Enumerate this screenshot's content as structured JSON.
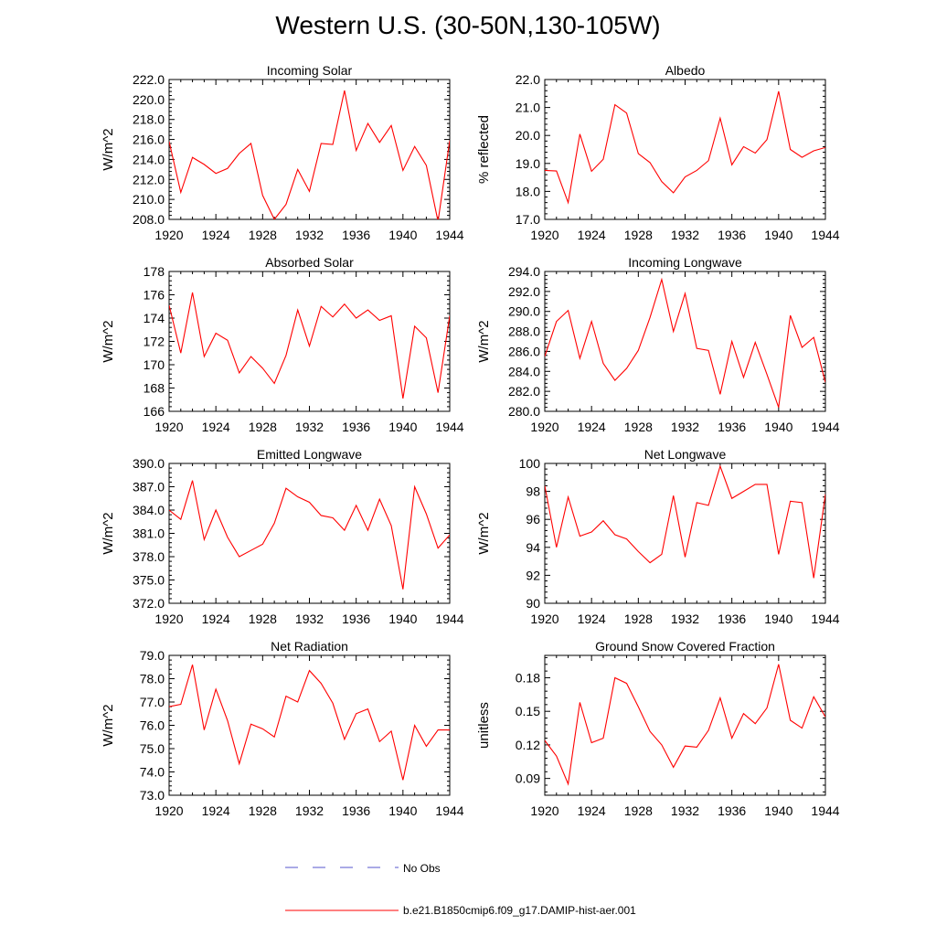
{
  "page": {
    "title": "Western U.S. (30-50N,130-105W)"
  },
  "legend": [
    {
      "label": "No Obs",
      "color": "#5555cc",
      "dash": "dashed"
    },
    {
      "label": "b.e21.B1850cmip6.f09_g17.DAMIP-hist-aer.001",
      "color": "#ff0000",
      "dash": "solid"
    }
  ],
  "colors": {
    "series": "#ff0000",
    "axis": "#000000"
  },
  "chart_data": [
    {
      "type": "line",
      "title": "Incoming Solar",
      "ylabel": "W/m^2",
      "xlim": [
        1920,
        1944
      ],
      "ylim": [
        208,
        222
      ],
      "xticks": [
        1920,
        1924,
        1928,
        1932,
        1936,
        1940,
        1944
      ],
      "yticks": [
        "208.0",
        "210.0",
        "212.0",
        "214.0",
        "216.0",
        "218.0",
        "220.0",
        "222.0"
      ],
      "x": [
        1920,
        1921,
        1922,
        1923,
        1924,
        1925,
        1926,
        1927,
        1928,
        1929,
        1930,
        1931,
        1932,
        1933,
        1934,
        1935,
        1936,
        1937,
        1938,
        1939,
        1940,
        1941,
        1942,
        1943,
        1944
      ],
      "series": [
        {
          "values": [
            215.8,
            210.7,
            214.2,
            213.5,
            212.6,
            213.1,
            214.6,
            215.6,
            210.4,
            208.0,
            209.5,
            213.0,
            210.8,
            215.6,
            215.5,
            220.9,
            214.9,
            217.6,
            215.7,
            217.4,
            212.9,
            215.3,
            213.4,
            207.8,
            215.9
          ]
        }
      ]
    },
    {
      "type": "line",
      "title": "Albedo",
      "ylabel": "% reflected",
      "xlim": [
        1920,
        1944
      ],
      "ylim": [
        17,
        22
      ],
      "xticks": [
        1920,
        1924,
        1928,
        1932,
        1936,
        1940,
        1944
      ],
      "yticks": [
        "17.0",
        "18.0",
        "19.0",
        "20.0",
        "21.0",
        "22.0"
      ],
      "x": [
        1920,
        1921,
        1922,
        1923,
        1924,
        1925,
        1926,
        1927,
        1928,
        1929,
        1930,
        1931,
        1932,
        1933,
        1934,
        1935,
        1936,
        1937,
        1938,
        1939,
        1940,
        1941,
        1942,
        1943,
        1944
      ],
      "series": [
        {
          "values": [
            18.75,
            18.73,
            17.6,
            20.05,
            18.72,
            19.15,
            21.1,
            20.8,
            19.35,
            19.03,
            18.35,
            17.95,
            18.52,
            18.75,
            19.1,
            20.62,
            18.95,
            19.6,
            19.37,
            19.85,
            21.58,
            19.5,
            19.22,
            19.45,
            19.57
          ]
        }
      ]
    },
    {
      "type": "line",
      "title": "Absorbed Solar",
      "ylabel": "W/m^2",
      "xlim": [
        1920,
        1944
      ],
      "ylim": [
        166,
        178
      ],
      "xticks": [
        1920,
        1924,
        1928,
        1932,
        1936,
        1940,
        1944
      ],
      "yticks": [
        "166",
        "168",
        "170",
        "172",
        "174",
        "176",
        "178"
      ],
      "x": [
        1920,
        1921,
        1922,
        1923,
        1924,
        1925,
        1926,
        1927,
        1928,
        1929,
        1930,
        1931,
        1932,
        1933,
        1934,
        1935,
        1936,
        1937,
        1938,
        1939,
        1940,
        1941,
        1942,
        1943,
        1944
      ],
      "series": [
        {
          "values": [
            175.1,
            171.0,
            176.2,
            170.7,
            172.7,
            172.1,
            169.3,
            170.7,
            169.7,
            168.4,
            170.8,
            174.7,
            171.6,
            175.0,
            174.1,
            175.2,
            174.0,
            174.7,
            173.8,
            174.2,
            167.1,
            173.3,
            172.3,
            167.6,
            174.2
          ]
        }
      ]
    },
    {
      "type": "line",
      "title": "Incoming Longwave",
      "ylabel": "W/m^2",
      "xlim": [
        1920,
        1944
      ],
      "ylim": [
        280,
        294
      ],
      "xticks": [
        1920,
        1924,
        1928,
        1932,
        1936,
        1940,
        1944
      ],
      "yticks": [
        "280.0",
        "282.0",
        "284.0",
        "286.0",
        "288.0",
        "290.0",
        "292.0",
        "294.0"
      ],
      "x": [
        1920,
        1921,
        1922,
        1923,
        1924,
        1925,
        1926,
        1927,
        1928,
        1929,
        1930,
        1931,
        1932,
        1933,
        1934,
        1935,
        1936,
        1937,
        1938,
        1939,
        1940,
        1941,
        1942,
        1943,
        1944
      ],
      "series": [
        {
          "values": [
            285.5,
            289.0,
            290.1,
            285.3,
            289.0,
            284.8,
            283.1,
            284.3,
            286.1,
            289.4,
            293.2,
            288.0,
            291.8,
            286.3,
            286.1,
            281.7,
            287.0,
            283.4,
            286.9,
            283.7,
            280.4,
            289.6,
            286.4,
            287.4,
            282.9
          ]
        }
      ]
    },
    {
      "type": "line",
      "title": "Emitted Longwave",
      "ylabel": "W/m^2",
      "xlim": [
        1920,
        1944
      ],
      "ylim": [
        372,
        390
      ],
      "xticks": [
        1920,
        1924,
        1928,
        1932,
        1936,
        1940,
        1944
      ],
      "yticks": [
        "372.0",
        "375.0",
        "378.0",
        "381.0",
        "384.0",
        "387.0",
        "390.0"
      ],
      "x": [
        1920,
        1921,
        1922,
        1923,
        1924,
        1925,
        1926,
        1927,
        1928,
        1929,
        1930,
        1931,
        1932,
        1933,
        1934,
        1935,
        1936,
        1937,
        1938,
        1939,
        1940,
        1941,
        1942,
        1943,
        1944
      ],
      "series": [
        {
          "values": [
            384.0,
            382.8,
            387.8,
            380.2,
            384.0,
            380.5,
            378.0,
            378.8,
            379.6,
            382.3,
            386.8,
            385.7,
            385.0,
            383.3,
            383.0,
            381.4,
            384.6,
            381.4,
            385.4,
            382.0,
            373.8,
            387.0,
            383.5,
            379.1,
            380.8
          ]
        }
      ]
    },
    {
      "type": "line",
      "title": "Net Longwave",
      "ylabel": "W/m^2",
      "xlim": [
        1920,
        1944
      ],
      "ylim": [
        90,
        100
      ],
      "xticks": [
        1920,
        1924,
        1928,
        1932,
        1936,
        1940,
        1944
      ],
      "yticks": [
        "90",
        "92",
        "94",
        "96",
        "98",
        "100"
      ],
      "x": [
        1920,
        1921,
        1922,
        1923,
        1924,
        1925,
        1926,
        1927,
        1928,
        1929,
        1930,
        1931,
        1932,
        1933,
        1934,
        1935,
        1936,
        1937,
        1938,
        1939,
        1940,
        1941,
        1942,
        1943,
        1944
      ],
      "series": [
        {
          "values": [
            98.4,
            94.0,
            97.6,
            94.8,
            95.1,
            95.9,
            94.9,
            94.6,
            93.7,
            92.9,
            93.5,
            97.7,
            93.3,
            97.2,
            97.0,
            99.8,
            97.5,
            98.0,
            98.5,
            98.5,
            93.5,
            97.3,
            97.2,
            91.8,
            97.8
          ]
        }
      ]
    },
    {
      "type": "line",
      "title": "Net Radiation",
      "ylabel": "W/m^2",
      "xlim": [
        1920,
        1944
      ],
      "ylim": [
        73,
        79
      ],
      "xticks": [
        1920,
        1924,
        1928,
        1932,
        1936,
        1940,
        1944
      ],
      "yticks": [
        "73.0",
        "74.0",
        "75.0",
        "76.0",
        "77.0",
        "78.0",
        "79.0"
      ],
      "x": [
        1920,
        1921,
        1922,
        1923,
        1924,
        1925,
        1926,
        1927,
        1928,
        1929,
        1930,
        1931,
        1932,
        1933,
        1934,
        1935,
        1936,
        1937,
        1938,
        1939,
        1940,
        1941,
        1942,
        1943,
        1944
      ],
      "series": [
        {
          "values": [
            76.8,
            76.9,
            78.6,
            75.8,
            77.55,
            76.2,
            74.35,
            76.05,
            75.85,
            75.5,
            77.25,
            77.0,
            78.35,
            77.8,
            76.95,
            75.4,
            76.5,
            76.7,
            75.3,
            75.75,
            73.65,
            76.0,
            75.1,
            75.8,
            75.8
          ]
        }
      ]
    },
    {
      "type": "line",
      "title": "Ground Snow Covered Fraction",
      "ylabel": "unitless",
      "xlim": [
        1920,
        1944
      ],
      "ylim": [
        0.075,
        0.2
      ],
      "xticks": [
        1920,
        1924,
        1928,
        1932,
        1936,
        1940,
        1944
      ],
      "yticks": [
        "0.09",
        "0.12",
        "0.15",
        "0.18"
      ],
      "x": [
        1920,
        1921,
        1922,
        1923,
        1924,
        1925,
        1926,
        1927,
        1928,
        1929,
        1930,
        1931,
        1932,
        1933,
        1934,
        1935,
        1936,
        1937,
        1938,
        1939,
        1940,
        1941,
        1942,
        1943,
        1944
      ],
      "series": [
        {
          "values": [
            0.124,
            0.11,
            0.085,
            0.158,
            0.122,
            0.126,
            0.18,
            0.175,
            0.154,
            0.132,
            0.12,
            0.1,
            0.119,
            0.118,
            0.133,
            0.162,
            0.126,
            0.148,
            0.139,
            0.153,
            0.192,
            0.142,
            0.135,
            0.163,
            0.145
          ]
        }
      ]
    }
  ]
}
